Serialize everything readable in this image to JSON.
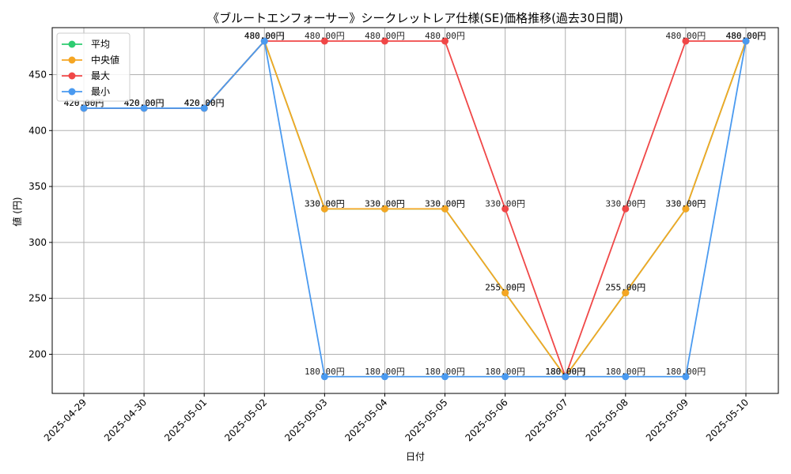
{
  "chart_data": {
    "type": "line",
    "title": "《ブルートエンフォーサー》シークレットレア仕様(SE)価格推移(過去30日間)",
    "xlabel": "日付",
    "ylabel": "値 (円)",
    "ylim": [
      165,
      492
    ],
    "yticks": [
      200,
      250,
      300,
      350,
      400,
      450
    ],
    "grid": true,
    "legend_position": "top-left",
    "categories": [
      "2025-04-29",
      "2025-04-30",
      "2025-05-01",
      "2025-05-02",
      "2025-05-03",
      "2025-05-04",
      "2025-05-05",
      "2025-05-06",
      "2025-05-07",
      "2025-05-08",
      "2025-05-09",
      "2025-05-10"
    ],
    "series": [
      {
        "name": "平均",
        "color": "#2ecc71",
        "values": [
          420,
          420,
          420,
          480,
          330,
          330,
          330,
          255,
          180,
          255,
          330,
          480
        ],
        "labels": [
          "420.00円",
          "420.00円",
          "420.00円",
          "480.00円",
          "330.00円",
          "330.00円",
          "330.00円",
          "255.00円",
          "180.00円",
          "255.00円",
          "330.00円",
          "480.00円"
        ]
      },
      {
        "name": "中央値",
        "color": "#f5a623",
        "values": [
          420,
          420,
          420,
          480,
          330,
          330,
          330,
          255,
          180,
          255,
          330,
          480
        ],
        "labels": [
          "420.00円",
          "420.00円",
          "420.00円",
          "480.00円",
          "330.00円",
          "330.00円",
          "330.00円",
          "255.00円",
          "180.00円",
          "255.00円",
          "330.00円",
          "480.00円"
        ]
      },
      {
        "name": "最大",
        "color": "#f04747",
        "values": [
          420,
          420,
          420,
          480,
          480,
          480,
          480,
          330,
          180,
          330,
          480,
          480
        ],
        "labels": [
          "420.00円",
          "420.00円",
          "420.00円",
          "480.00円",
          "480.00円",
          "480.00円",
          "480.00円",
          "330.00円",
          "180.00円",
          "330.00円",
          "480.00円",
          "480.00円"
        ]
      },
      {
        "name": "最小",
        "color": "#4a9af0",
        "values": [
          420,
          420,
          420,
          480,
          180,
          180,
          180,
          180,
          180,
          180,
          180,
          480
        ],
        "labels": [
          "420.00円",
          "420.00円",
          "420.00円",
          "480.00円",
          "180.00円",
          "180.00円",
          "180.00円",
          "180.00円",
          "180.00円",
          "180.00円",
          "180.00円",
          "480.00円"
        ]
      }
    ]
  }
}
